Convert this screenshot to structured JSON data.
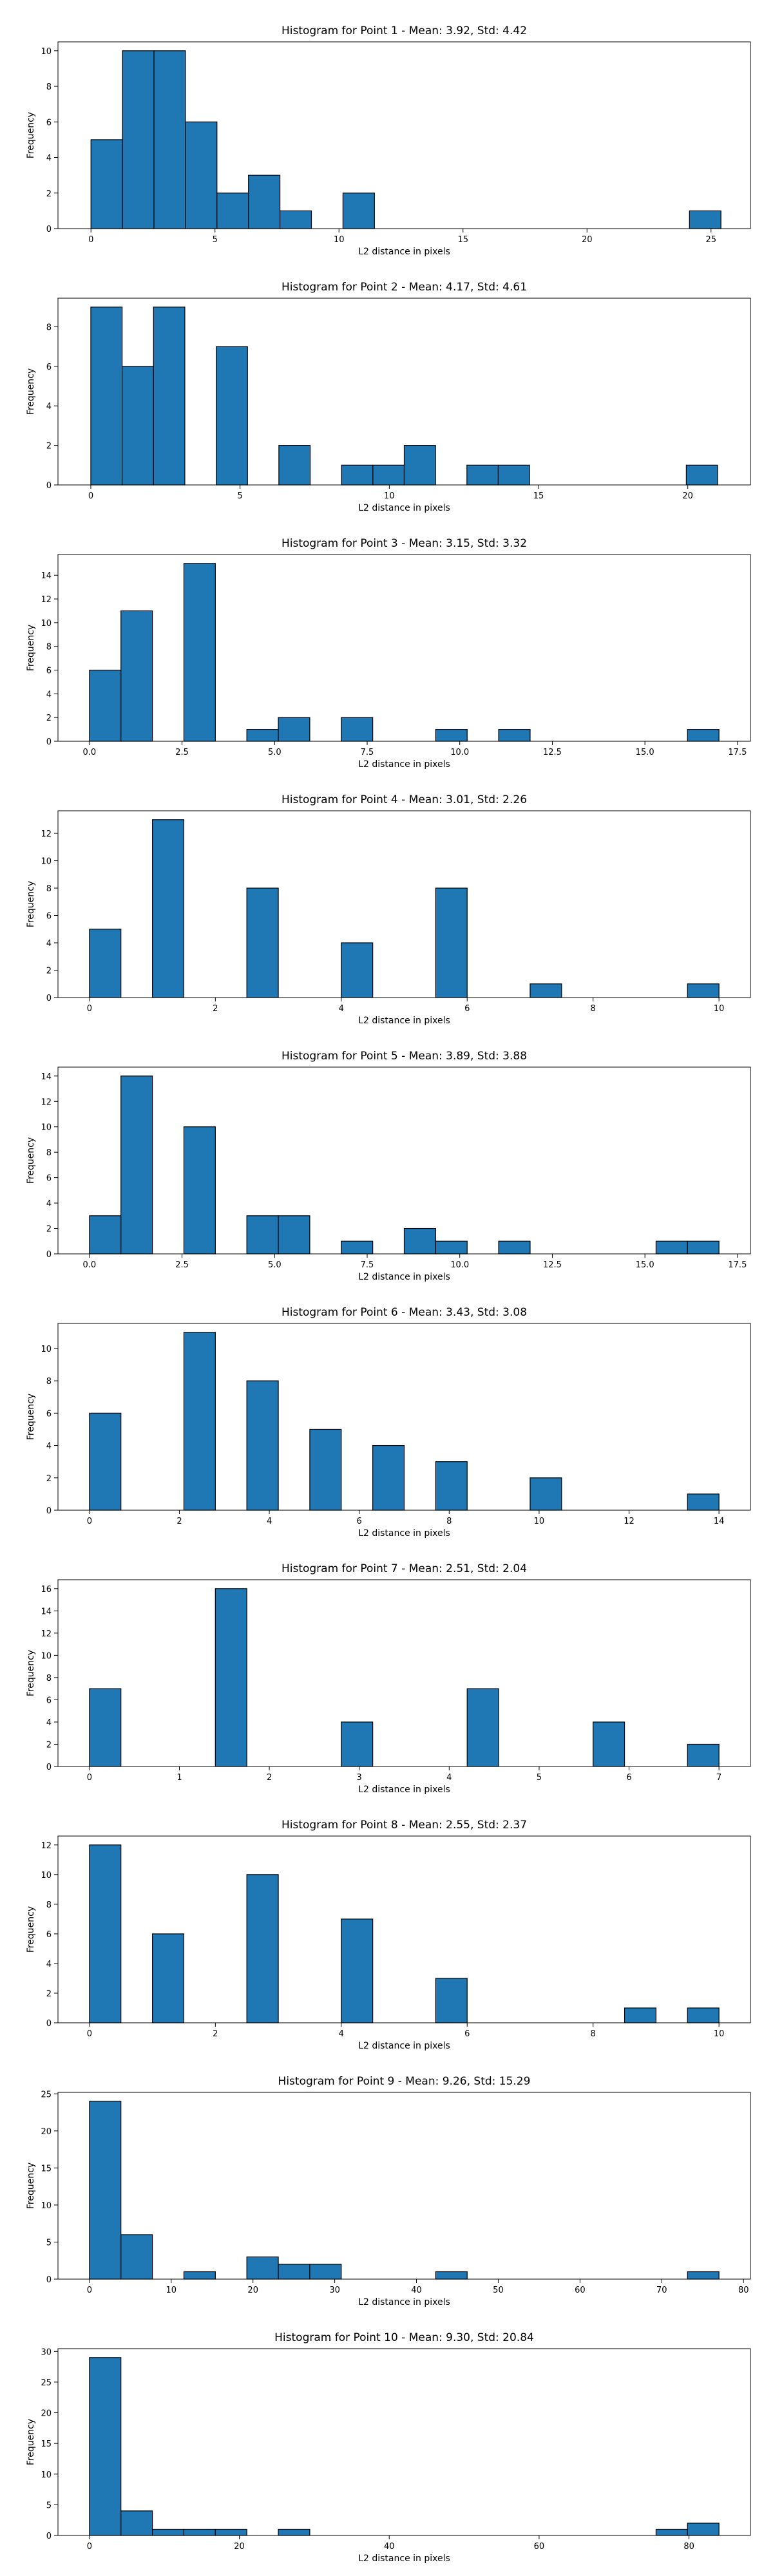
{
  "figure": {
    "background": "#ffffff"
  },
  "chart_data": [
    {
      "type": "bar",
      "title": "Histogram for Point 1 - Mean: 3.92, Std: 4.42",
      "xlabel": "L2 distance in pixels",
      "ylabel": "Frequency",
      "xlim": [
        -1.33,
        26.59
      ],
      "ylim": [
        0,
        10.5
      ],
      "xticks": [
        0,
        5,
        10,
        15,
        20,
        25
      ],
      "xtick_labels": [
        "0",
        "5",
        "10",
        "15",
        "20",
        "25"
      ],
      "yticks": [
        0,
        2,
        4,
        6,
        8,
        10
      ],
      "ytick_labels": [
        "0",
        "2",
        "4",
        "6",
        "8",
        "10"
      ],
      "grid": false,
      "bar_color": "#1f77b4",
      "edge_color": "#000000",
      "bin_edges": [
        0,
        1.27,
        2.54,
        3.81,
        5.08,
        6.35,
        7.62,
        8.89,
        10.16,
        11.43,
        12.7,
        13.97,
        15.24,
        16.51,
        17.78,
        19.05,
        20.32,
        21.59,
        22.86,
        24.13,
        25.4
      ],
      "counts": [
        5,
        10,
        10,
        6,
        2,
        3,
        1,
        0,
        2,
        0,
        0,
        0,
        0,
        0,
        0,
        0,
        0,
        0,
        0,
        1
      ]
    },
    {
      "type": "bar",
      "title": "Histogram for Point 2 - Mean: 4.17, Std: 4.61",
      "xlabel": "L2 distance in pixels",
      "ylabel": "Frequency",
      "xlim": [
        -1.1,
        22.1
      ],
      "ylim": [
        0,
        9.45
      ],
      "xticks": [
        0,
        5,
        10,
        15,
        20
      ],
      "xtick_labels": [
        "0",
        "5",
        "10",
        "15",
        "20"
      ],
      "yticks": [
        0,
        2,
        4,
        6,
        8
      ],
      "ytick_labels": [
        "0",
        "2",
        "4",
        "6",
        "8"
      ],
      "grid": false,
      "bar_color": "#1f77b4",
      "edge_color": "#000000",
      "bin_edges": [
        0,
        1.05,
        2.1,
        3.15,
        4.2,
        5.25,
        6.3,
        7.35,
        8.4,
        9.45,
        10.5,
        11.55,
        12.6,
        13.65,
        14.7,
        15.75,
        16.8,
        17.85,
        18.9,
        19.95,
        21.0
      ],
      "counts": [
        9,
        6,
        9,
        0,
        7,
        0,
        2,
        0,
        1,
        1,
        2,
        0,
        1,
        1,
        0,
        0,
        0,
        0,
        0,
        1
      ]
    },
    {
      "type": "bar",
      "title": "Histogram for Point 3 - Mean: 3.15, Std: 3.32",
      "xlabel": "L2 distance in pixels",
      "ylabel": "Frequency",
      "xlim": [
        -0.85,
        17.85
      ],
      "ylim": [
        0,
        15.75
      ],
      "xticks": [
        0,
        2.5,
        5,
        7.5,
        10,
        12.5,
        15,
        17.5
      ],
      "xtick_labels": [
        "0.0",
        "2.5",
        "5.0",
        "7.5",
        "10.0",
        "12.5",
        "15.0",
        "17.5"
      ],
      "yticks": [
        0,
        2,
        4,
        6,
        8,
        10,
        12,
        14
      ],
      "ytick_labels": [
        "0",
        "2",
        "4",
        "6",
        "8",
        "10",
        "12",
        "14"
      ],
      "grid": false,
      "bar_color": "#1f77b4",
      "edge_color": "#000000",
      "bin_edges": [
        0,
        0.85,
        1.7,
        2.55,
        3.4,
        4.25,
        5.1,
        5.95,
        6.8,
        7.65,
        8.5,
        9.35,
        10.2,
        11.05,
        11.9,
        12.75,
        13.6,
        14.45,
        15.3,
        16.15,
        17.0
      ],
      "counts": [
        6,
        11,
        0,
        15,
        0,
        1,
        2,
        0,
        2,
        0,
        0,
        1,
        0,
        1,
        0,
        0,
        0,
        0,
        0,
        1
      ]
    },
    {
      "type": "bar",
      "title": "Histogram for Point 4 - Mean: 3.01, Std: 2.26",
      "xlabel": "L2 distance in pixels",
      "ylabel": "Frequency",
      "xlim": [
        -0.5,
        10.5
      ],
      "ylim": [
        0,
        13.65
      ],
      "xticks": [
        0,
        2,
        4,
        6,
        8,
        10
      ],
      "xtick_labels": [
        "0",
        "2",
        "4",
        "6",
        "8",
        "10"
      ],
      "yticks": [
        0,
        2,
        4,
        6,
        8,
        10,
        12
      ],
      "ytick_labels": [
        "0",
        "2",
        "4",
        "6",
        "8",
        "10",
        "12"
      ],
      "grid": false,
      "bar_color": "#1f77b4",
      "edge_color": "#000000",
      "bin_edges": [
        0,
        0.5,
        1.0,
        1.5,
        2.0,
        2.5,
        3.0,
        3.5,
        4.0,
        4.5,
        5.0,
        5.5,
        6.0,
        6.5,
        7.0,
        7.5,
        8.0,
        8.5,
        9.0,
        9.5,
        10.0
      ],
      "counts": [
        5,
        0,
        13,
        0,
        0,
        8,
        0,
        0,
        4,
        0,
        0,
        8,
        0,
        0,
        1,
        0,
        0,
        0,
        0,
        1
      ]
    },
    {
      "type": "bar",
      "title": "Histogram for Point 5 - Mean: 3.89, Std: 3.88",
      "xlabel": "L2 distance in pixels",
      "ylabel": "Frequency",
      "xlim": [
        -0.85,
        17.85
      ],
      "ylim": [
        0,
        14.7
      ],
      "xticks": [
        0,
        2.5,
        5,
        7.5,
        10,
        12.5,
        15,
        17.5
      ],
      "xtick_labels": [
        "0.0",
        "2.5",
        "5.0",
        "7.5",
        "10.0",
        "12.5",
        "15.0",
        "17.5"
      ],
      "yticks": [
        0,
        2,
        4,
        6,
        8,
        10,
        12,
        14
      ],
      "ytick_labels": [
        "0",
        "2",
        "4",
        "6",
        "8",
        "10",
        "12",
        "14"
      ],
      "grid": false,
      "bar_color": "#1f77b4",
      "edge_color": "#000000",
      "bin_edges": [
        0,
        0.85,
        1.7,
        2.55,
        3.4,
        4.25,
        5.1,
        5.95,
        6.8,
        7.65,
        8.5,
        9.35,
        10.2,
        11.05,
        11.9,
        12.75,
        13.6,
        14.45,
        15.3,
        16.15,
        17.0
      ],
      "counts": [
        3,
        14,
        0,
        10,
        0,
        3,
        3,
        0,
        1,
        0,
        2,
        1,
        0,
        1,
        0,
        0,
        0,
        0,
        1,
        1
      ]
    },
    {
      "type": "bar",
      "title": "Histogram for Point 6 - Mean: 3.43, Std: 3.08",
      "xlabel": "L2 distance in pixels",
      "ylabel": "Frequency",
      "xlim": [
        -0.7,
        14.7
      ],
      "ylim": [
        0,
        11.55
      ],
      "xticks": [
        0,
        2,
        4,
        6,
        8,
        10,
        12,
        14
      ],
      "xtick_labels": [
        "0",
        "2",
        "4",
        "6",
        "8",
        "10",
        "12",
        "14"
      ],
      "yticks": [
        0,
        2,
        4,
        6,
        8,
        10
      ],
      "ytick_labels": [
        "0",
        "2",
        "4",
        "6",
        "8",
        "10"
      ],
      "grid": false,
      "bar_color": "#1f77b4",
      "edge_color": "#000000",
      "bin_edges": [
        0,
        0.7,
        1.4,
        2.1,
        2.8,
        3.5,
        4.2,
        4.9,
        5.6,
        6.3,
        7.0,
        7.7,
        8.4,
        9.1,
        9.8,
        10.5,
        11.2,
        11.9,
        12.6,
        13.3,
        14.0
      ],
      "counts": [
        6,
        0,
        0,
        11,
        0,
        8,
        0,
        5,
        0,
        4,
        0,
        3,
        0,
        0,
        2,
        0,
        0,
        0,
        0,
        1
      ]
    },
    {
      "type": "bar",
      "title": "Histogram for Point 7 - Mean: 2.51, Std: 2.04",
      "xlabel": "L2 distance in pixels",
      "ylabel": "Frequency",
      "xlim": [
        -0.35,
        7.35
      ],
      "ylim": [
        0,
        16.8
      ],
      "xticks": [
        0,
        1,
        2,
        3,
        4,
        5,
        6,
        7
      ],
      "xtick_labels": [
        "0",
        "1",
        "2",
        "3",
        "4",
        "5",
        "6",
        "7"
      ],
      "yticks": [
        0,
        2,
        4,
        6,
        8,
        10,
        12,
        14,
        16
      ],
      "ytick_labels": [
        "0",
        "2",
        "4",
        "6",
        "8",
        "10",
        "12",
        "14",
        "16"
      ],
      "grid": false,
      "bar_color": "#1f77b4",
      "edge_color": "#000000",
      "bin_edges": [
        0,
        0.35,
        0.7,
        1.05,
        1.4,
        1.75,
        2.1,
        2.45,
        2.8,
        3.15,
        3.5,
        3.85,
        4.2,
        4.55,
        4.9,
        5.25,
        5.6,
        5.95,
        6.3,
        6.65,
        7.0
      ],
      "counts": [
        7,
        0,
        0,
        0,
        16,
        0,
        0,
        0,
        4,
        0,
        0,
        0,
        7,
        0,
        0,
        0,
        4,
        0,
        0,
        2
      ]
    },
    {
      "type": "bar",
      "title": "Histogram for Point 8 - Mean: 2.55, Std: 2.37",
      "xlabel": "L2 distance in pixels",
      "ylabel": "Frequency",
      "xlim": [
        -0.5,
        10.5
      ],
      "ylim": [
        0,
        12.6
      ],
      "xticks": [
        0,
        2,
        4,
        6,
        8,
        10
      ],
      "xtick_labels": [
        "0",
        "2",
        "4",
        "6",
        "8",
        "10"
      ],
      "yticks": [
        0,
        2,
        4,
        6,
        8,
        10,
        12
      ],
      "ytick_labels": [
        "0",
        "2",
        "4",
        "6",
        "8",
        "10",
        "12"
      ],
      "grid": false,
      "bar_color": "#1f77b4",
      "edge_color": "#000000",
      "bin_edges": [
        0,
        0.5,
        1.0,
        1.5,
        2.0,
        2.5,
        3.0,
        3.5,
        4.0,
        4.5,
        5.0,
        5.5,
        6.0,
        6.5,
        7.0,
        7.5,
        8.0,
        8.5,
        9.0,
        9.5,
        10.0
      ],
      "counts": [
        12,
        0,
        6,
        0,
        0,
        10,
        0,
        0,
        7,
        0,
        0,
        3,
        0,
        0,
        0,
        0,
        0,
        1,
        0,
        1
      ]
    },
    {
      "type": "bar",
      "title": "Histogram for Point 9 - Mean: 9.26, Std: 15.29",
      "xlabel": "L2 distance in pixels",
      "ylabel": "Frequency",
      "xlim": [
        -3.85,
        80.85
      ],
      "ylim": [
        0,
        25.2
      ],
      "xticks": [
        0,
        10,
        20,
        30,
        40,
        50,
        60,
        70,
        80
      ],
      "xtick_labels": [
        "0",
        "10",
        "20",
        "30",
        "40",
        "50",
        "60",
        "70",
        "80"
      ],
      "yticks": [
        0,
        5,
        10,
        15,
        20,
        25
      ],
      "ytick_labels": [
        "0",
        "5",
        "10",
        "15",
        "20",
        "25"
      ],
      "grid": false,
      "bar_color": "#1f77b4",
      "edge_color": "#000000",
      "bin_edges": [
        0,
        3.85,
        7.7,
        11.55,
        15.4,
        19.25,
        23.1,
        26.95,
        30.8,
        34.65,
        38.5,
        42.35,
        46.2,
        50.05,
        53.9,
        57.75,
        61.6,
        65.45,
        69.3,
        73.15,
        77.0
      ],
      "counts": [
        24,
        6,
        0,
        1,
        0,
        3,
        2,
        2,
        0,
        0,
        0,
        1,
        0,
        0,
        0,
        0,
        0,
        0,
        0,
        1
      ]
    },
    {
      "type": "bar",
      "title": "Histogram for Point 10 - Mean: 9.30, Std: 20.84",
      "xlabel": "L2 distance in pixels",
      "ylabel": "Frequency",
      "xlim": [
        -4.2,
        88.2
      ],
      "ylim": [
        0,
        30.45
      ],
      "xticks": [
        0,
        20,
        40,
        60,
        80
      ],
      "xtick_labels": [
        "0",
        "20",
        "40",
        "60",
        "80"
      ],
      "yticks": [
        0,
        5,
        10,
        15,
        20,
        25,
        30
      ],
      "ytick_labels": [
        "0",
        "5",
        "10",
        "15",
        "20",
        "25",
        "30"
      ],
      "grid": false,
      "bar_color": "#1f77b4",
      "edge_color": "#000000",
      "bin_edges": [
        0,
        4.2,
        8.4,
        12.6,
        16.8,
        21.0,
        25.2,
        29.4,
        33.6,
        37.8,
        42.0,
        46.2,
        50.4,
        54.6,
        58.8,
        63.0,
        67.2,
        71.4,
        75.6,
        79.8,
        84.0
      ],
      "counts": [
        29,
        4,
        1,
        1,
        1,
        0,
        1,
        0,
        0,
        0,
        0,
        0,
        0,
        0,
        0,
        0,
        0,
        0,
        1,
        2
      ]
    }
  ]
}
